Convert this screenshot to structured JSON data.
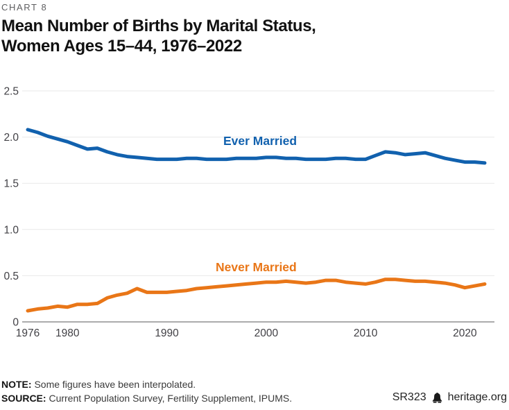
{
  "header": {
    "eyebrow": "CHART 8",
    "title_line1": "Mean Number of Births by Marital Status,",
    "title_line2": "Women Ages 15–44, 1976–2022"
  },
  "chart_data": {
    "type": "line",
    "title": "Mean Number of Births by Marital Status, Women Ages 15–44, 1976–2022",
    "xlabel": "",
    "ylabel": "",
    "ylim": [
      0,
      2.5
    ],
    "x_range": [
      1976,
      2022
    ],
    "grid": "horizontal",
    "legend": "inline-labels",
    "grid_color": "#e8e8e8",
    "axis_color": "#57575a",
    "tick_color": "#414045",
    "x": [
      1976,
      1977,
      1978,
      1979,
      1980,
      1981,
      1982,
      1983,
      1984,
      1985,
      1986,
      1987,
      1988,
      1989,
      1990,
      1991,
      1992,
      1993,
      1994,
      1995,
      1996,
      1997,
      1998,
      1999,
      2000,
      2001,
      2002,
      2003,
      2004,
      2005,
      2006,
      2007,
      2008,
      2009,
      2010,
      2011,
      2012,
      2013,
      2014,
      2015,
      2016,
      2017,
      2018,
      2019,
      2020,
      2021,
      2022
    ],
    "y_ticks": [
      {
        "value": 2.5,
        "label": "2.5"
      },
      {
        "value": 2.0,
        "label": "2.0"
      },
      {
        "value": 1.5,
        "label": "1.5"
      },
      {
        "value": 1.0,
        "label": "1.0"
      },
      {
        "value": 0.5,
        "label": "0.5"
      },
      {
        "value": 0,
        "label": "0"
      }
    ],
    "x_ticks": [
      {
        "value": 1976,
        "label": "1976"
      },
      {
        "value": 1980,
        "label": "1980"
      },
      {
        "value": 1990,
        "label": "1990"
      },
      {
        "value": 2000,
        "label": "2000"
      },
      {
        "value": 2010,
        "label": "2010"
      },
      {
        "value": 2020,
        "label": "2020"
      }
    ],
    "series": [
      {
        "name": "Ever Married",
        "color": "#1161ae",
        "values": [
          2.08,
          2.05,
          2.01,
          1.98,
          1.95,
          1.91,
          1.87,
          1.88,
          1.84,
          1.81,
          1.79,
          1.78,
          1.77,
          1.76,
          1.76,
          1.76,
          1.77,
          1.77,
          1.76,
          1.76,
          1.76,
          1.77,
          1.77,
          1.77,
          1.78,
          1.78,
          1.77,
          1.77,
          1.76,
          1.76,
          1.76,
          1.77,
          1.77,
          1.76,
          1.76,
          1.8,
          1.84,
          1.83,
          1.81,
          1.82,
          1.83,
          1.8,
          1.77,
          1.75,
          1.73,
          1.73,
          1.72
        ]
      },
      {
        "name": "Never Married",
        "color": "#e97617",
        "values": [
          0.12,
          0.14,
          0.15,
          0.17,
          0.16,
          0.19,
          0.19,
          0.2,
          0.26,
          0.29,
          0.31,
          0.36,
          0.32,
          0.32,
          0.32,
          0.33,
          0.34,
          0.36,
          0.37,
          0.38,
          0.39,
          0.4,
          0.41,
          0.42,
          0.43,
          0.43,
          0.44,
          0.43,
          0.42,
          0.43,
          0.45,
          0.45,
          0.43,
          0.42,
          0.41,
          0.43,
          0.46,
          0.46,
          0.45,
          0.44,
          0.44,
          0.43,
          0.42,
          0.4,
          0.37,
          0.39,
          0.41
        ]
      }
    ]
  },
  "footer": {
    "note_label": "NOTE:",
    "note_text": " Some figures have been interpolated.",
    "source_label": "SOURCE:",
    "source_text": " Current Population Survey, Fertility Supplement, IPUMS.",
    "report_id": "SR323",
    "site": "heritage.org",
    "bell_icon": "heritage-bell-icon"
  }
}
